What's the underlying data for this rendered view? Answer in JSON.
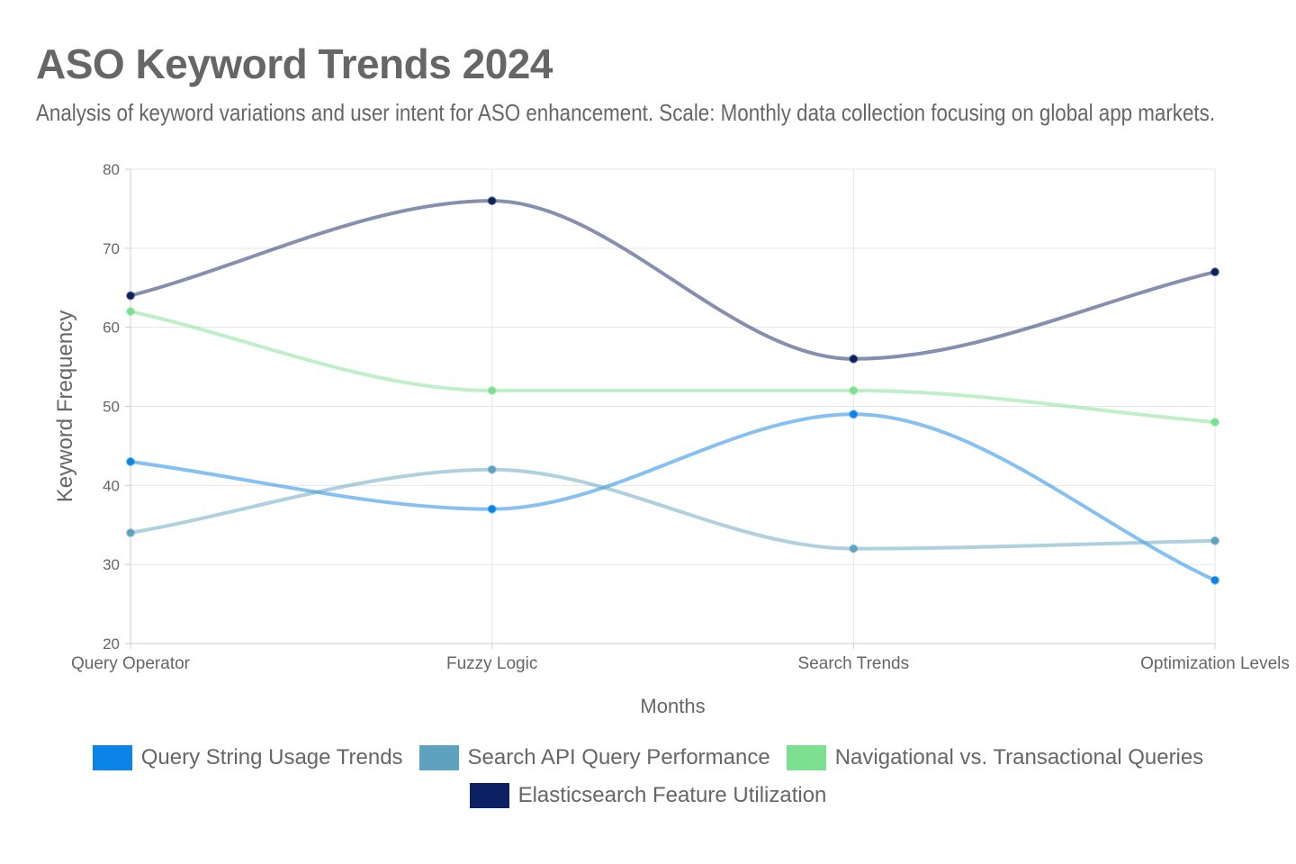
{
  "title": "ASO Keyword Trends 2024",
  "subtitle": "Analysis of keyword variations and user intent for ASO enhancement. Scale: Monthly data collection focusing on global app markets.",
  "chart_data": {
    "type": "line",
    "title": "ASO Keyword Trends 2024",
    "xlabel": "Months",
    "ylabel": "Keyword Frequency",
    "categories": [
      "Query Operator",
      "Fuzzy Logic",
      "Search Trends",
      "Optimization Levels"
    ],
    "ylim": [
      20,
      80
    ],
    "yticks": [
      20,
      30,
      40,
      50,
      60,
      70,
      80
    ],
    "grid": true,
    "legend_position": "bottom",
    "series": [
      {
        "name": "Query String Usage Trends",
        "values": [
          43,
          37,
          49,
          28
        ],
        "color": "#0a84e6"
      },
      {
        "name": "Search API Query Performance",
        "values": [
          34,
          42,
          32,
          33
        ],
        "color": "#5fa2bf"
      },
      {
        "name": "Navigational vs. Transactional Queries",
        "values": [
          62,
          52,
          52,
          48
        ],
        "color": "#7ddf90"
      },
      {
        "name": "Elasticsearch Feature Utilization",
        "values": [
          64,
          76,
          56,
          67
        ],
        "color": "#0b2161"
      }
    ]
  }
}
